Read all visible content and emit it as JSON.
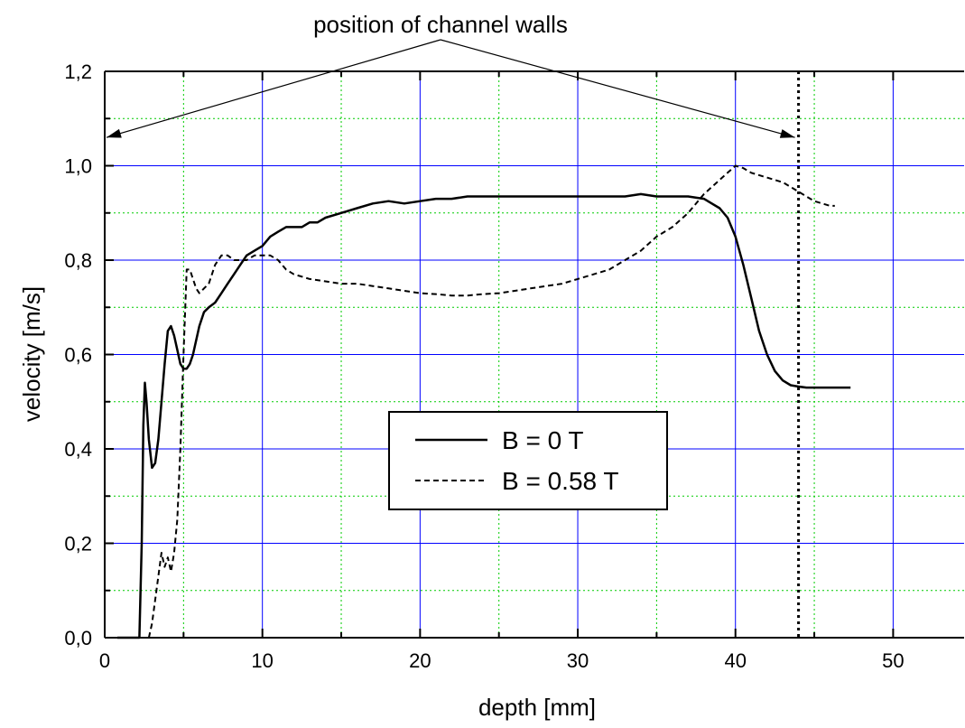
{
  "chart_data": {
    "type": "line",
    "xlabel": "depth [mm]",
    "ylabel": "velocity [m/s]",
    "xlim": [
      0,
      54.5
    ],
    "ylim": [
      0,
      1.2
    ],
    "x_ticks": [
      0,
      10,
      20,
      30,
      40,
      50
    ],
    "x_tick_labels": [
      "0",
      "10",
      "20",
      "30",
      "40",
      "50"
    ],
    "y_ticks": [
      0.0,
      0.2,
      0.4,
      0.6,
      0.8,
      1.0,
      1.2
    ],
    "y_tick_labels": [
      "0,0",
      "0,2",
      "0,4",
      "0,6",
      "0,8",
      "1,0",
      "1,2"
    ],
    "grid": {
      "major": "blue solid",
      "minor": "green dotted"
    },
    "legend": {
      "position": "center",
      "entries": [
        "B = 0 T",
        "B = 0.58 T"
      ]
    },
    "annotation": {
      "text": "position of channel walls",
      "arrow_targets_x": [
        0,
        44
      ]
    },
    "vertical_marker_x": 44,
    "colors": {
      "line": "#000000",
      "major_grid": "#0000ff",
      "minor_grid": "#00cc00"
    },
    "series": [
      {
        "name": "B = 0 T",
        "style": "solid",
        "x": [
          0.8,
          1.2,
          1.6,
          2.2,
          2.35,
          2.45,
          2.55,
          2.65,
          2.8,
          3.0,
          3.2,
          3.4,
          3.6,
          3.8,
          4.0,
          4.2,
          4.4,
          4.6,
          4.8,
          5.0,
          5.2,
          5.4,
          5.6,
          5.8,
          6.0,
          6.3,
          6.6,
          7.0,
          7.4,
          7.8,
          8.2,
          8.6,
          9.0,
          9.5,
          10.0,
          10.5,
          11.0,
          11.5,
          12.0,
          12.5,
          13.0,
          13.5,
          14.0,
          15.0,
          16.0,
          17.0,
          18.0,
          19.0,
          20.0,
          21.0,
          22.0,
          23.0,
          24.0,
          25.0,
          26.0,
          27.0,
          28.0,
          29.0,
          30.0,
          31.0,
          32.0,
          33.0,
          34.0,
          35.0,
          36.0,
          37.0,
          38.0,
          38.5,
          39.0,
          39.5,
          40.0,
          40.5,
          41.0,
          41.5,
          42.0,
          42.5,
          43.0,
          43.5,
          44.0,
          44.5,
          45.0,
          46.0,
          47.0,
          47.3
        ],
        "y": [
          0.0,
          0.0,
          0.0,
          0.0,
          0.2,
          0.45,
          0.54,
          0.5,
          0.42,
          0.36,
          0.37,
          0.42,
          0.5,
          0.58,
          0.65,
          0.66,
          0.64,
          0.61,
          0.58,
          0.57,
          0.57,
          0.58,
          0.6,
          0.63,
          0.66,
          0.69,
          0.7,
          0.71,
          0.73,
          0.75,
          0.77,
          0.79,
          0.81,
          0.82,
          0.83,
          0.85,
          0.86,
          0.87,
          0.87,
          0.87,
          0.88,
          0.88,
          0.89,
          0.9,
          0.91,
          0.92,
          0.925,
          0.92,
          0.925,
          0.93,
          0.93,
          0.935,
          0.935,
          0.935,
          0.935,
          0.935,
          0.935,
          0.935,
          0.935,
          0.935,
          0.935,
          0.935,
          0.94,
          0.935,
          0.935,
          0.935,
          0.93,
          0.92,
          0.91,
          0.89,
          0.85,
          0.79,
          0.72,
          0.65,
          0.6,
          0.565,
          0.545,
          0.535,
          0.532,
          0.53,
          0.53,
          0.53,
          0.53,
          0.53
        ]
      },
      {
        "name": "B = 0.58 T",
        "style": "dashed",
        "x": [
          2.8,
          3.0,
          3.2,
          3.4,
          3.6,
          3.8,
          4.0,
          4.2,
          4.4,
          4.6,
          4.8,
          5.0,
          5.2,
          5.4,
          5.6,
          5.8,
          6.0,
          6.3,
          6.6,
          7.0,
          7.4,
          7.8,
          8.2,
          8.6,
          9.0,
          9.5,
          10.0,
          10.5,
          11.0,
          11.5,
          12.0,
          13.0,
          14.0,
          15.0,
          16.0,
          17.0,
          18.0,
          19.0,
          20.0,
          21.0,
          22.0,
          23.0,
          24.0,
          25.0,
          26.0,
          27.0,
          28.0,
          29.0,
          30.0,
          31.0,
          32.0,
          33.0,
          34.0,
          35.0,
          36.0,
          37.0,
          38.0,
          39.0,
          39.5,
          40.0,
          40.5,
          41.0,
          42.0,
          43.0,
          43.5,
          44.0,
          44.5,
          45.0,
          45.5,
          46.0,
          46.3
        ],
        "y": [
          0.0,
          0.03,
          0.08,
          0.13,
          0.18,
          0.15,
          0.17,
          0.14,
          0.18,
          0.25,
          0.4,
          0.6,
          0.78,
          0.78,
          0.76,
          0.74,
          0.73,
          0.74,
          0.75,
          0.79,
          0.81,
          0.81,
          0.8,
          0.8,
          0.8,
          0.81,
          0.81,
          0.81,
          0.8,
          0.78,
          0.77,
          0.76,
          0.755,
          0.75,
          0.75,
          0.745,
          0.74,
          0.735,
          0.73,
          0.728,
          0.725,
          0.725,
          0.728,
          0.73,
          0.735,
          0.74,
          0.745,
          0.75,
          0.76,
          0.77,
          0.78,
          0.8,
          0.82,
          0.85,
          0.87,
          0.9,
          0.94,
          0.97,
          0.985,
          1.0,
          0.995,
          0.985,
          0.975,
          0.965,
          0.955,
          0.945,
          0.935,
          0.925,
          0.92,
          0.915,
          0.915
        ]
      }
    ]
  }
}
